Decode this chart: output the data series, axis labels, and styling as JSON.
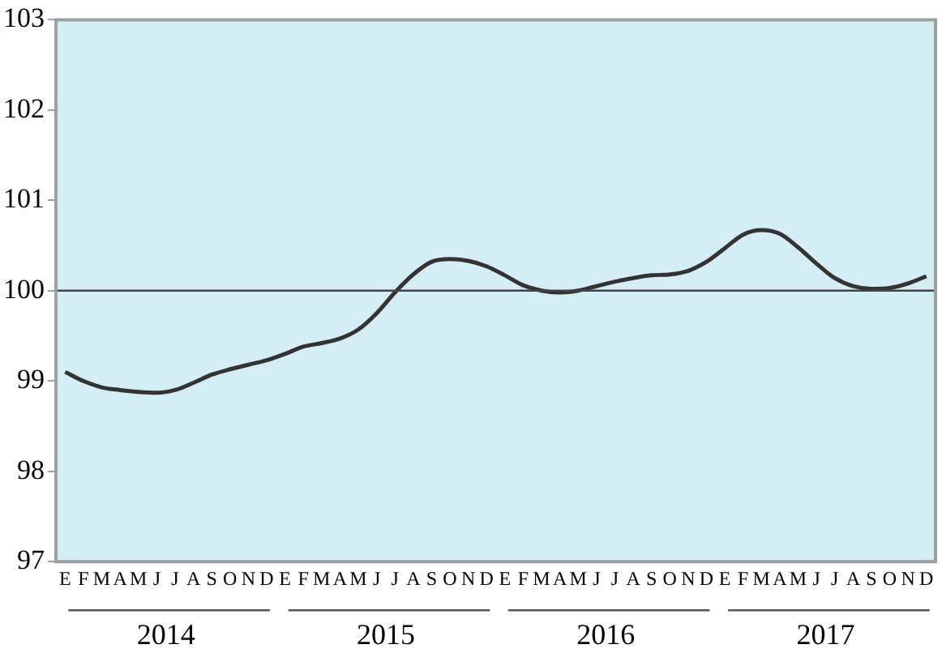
{
  "chart_data": {
    "type": "line",
    "categories": [
      "E",
      "F",
      "M",
      "A",
      "M",
      "J",
      "J",
      "A",
      "S",
      "O",
      "N",
      "D",
      "E",
      "F",
      "M",
      "A",
      "M",
      "J",
      "J",
      "A",
      "S",
      "O",
      "N",
      "D",
      "E",
      "F",
      "M",
      "A",
      "M",
      "J",
      "J",
      "A",
      "S",
      "O",
      "N",
      "D",
      "E",
      "F",
      "M",
      "A",
      "M",
      "J",
      "J",
      "A",
      "S",
      "O",
      "N",
      "D"
    ],
    "series": [
      {
        "color": "#333333",
        "values": [
          99.1,
          99.0,
          98.93,
          98.9,
          98.88,
          98.87,
          98.9,
          98.98,
          99.07,
          99.13,
          99.18,
          99.23,
          99.3,
          99.38,
          99.42,
          99.47,
          99.57,
          99.75,
          99.98,
          100.18,
          100.32,
          100.35,
          100.33,
          100.27,
          100.17,
          100.06,
          100.0,
          99.98,
          100.0,
          100.05,
          100.1,
          100.14,
          100.17,
          100.18,
          100.22,
          100.32,
          100.47,
          100.62,
          100.67,
          100.63,
          100.48,
          100.3,
          100.14,
          100.05,
          100.02,
          100.03,
          100.08,
          100.16
        ]
      }
    ],
    "ylim": [
      97,
      103
    ],
    "yticks": [
      97,
      98,
      99,
      100,
      101,
      102,
      103
    ],
    "ref_lines": [
      {
        "axis": "y",
        "value": 100,
        "color": "#444444"
      }
    ],
    "annotations": [
      "2014",
      "2015",
      "2016",
      "2017"
    ],
    "marker": "none",
    "line_style": "solid"
  }
}
